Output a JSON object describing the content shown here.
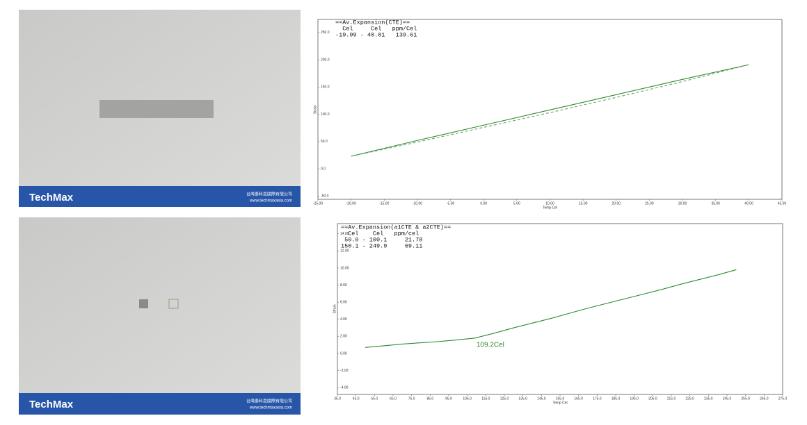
{
  "photos": [
    {
      "brand": "TechMax",
      "company": "台灣泰科思國際有限公司",
      "url": "www.techmaxasia.com"
    },
    {
      "brand": "TechMax",
      "company": "台灣泰科思國際有限公司",
      "url": "www.techmaxasia.com"
    }
  ],
  "chart_data": [
    {
      "type": "line",
      "annotation": [
        "==Av.Expansion(CTE)==",
        "  Cel     Cel   ppm/Cel",
        "-19.99 - 40.01   139.61"
      ],
      "x_label": "Temp Cel",
      "y_label": "Strain",
      "x": [
        -20,
        -10,
        0,
        10,
        20,
        30,
        40
      ],
      "series": [
        {
          "color": "#2e8b2e",
          "dashed": false,
          "values": [
            23,
            52,
            80,
            108,
            136,
            164,
            191
          ]
        },
        {
          "color": "#6f9f6f",
          "dashed": true,
          "values": [
            23,
            49,
            76,
            103,
            131,
            160,
            191
          ]
        }
      ],
      "xlim": [
        -25,
        45
      ],
      "xticks": [
        {
          "value": -25,
          "label": "-25.00"
        },
        {
          "value": -20,
          "label": "-20.00"
        },
        {
          "value": -15,
          "label": "-15.00"
        },
        {
          "value": -10,
          "label": "-10.00"
        },
        {
          "value": -5,
          "label": "-5.00"
        },
        {
          "value": 0,
          "label": "0.00"
        },
        {
          "value": 5,
          "label": "5.00"
        },
        {
          "value": 10,
          "label": "10.00"
        },
        {
          "value": 15,
          "label": "15.00"
        },
        {
          "value": 20,
          "label": "20.00"
        },
        {
          "value": 25,
          "label": "25.00"
        },
        {
          "value": 30,
          "label": "30.00"
        },
        {
          "value": 35,
          "label": "35.00"
        },
        {
          "value": 40,
          "label": "40.00"
        },
        {
          "value": 45,
          "label": "45.00"
        }
      ],
      "ylim": [
        -56,
        274
      ],
      "yticks": [
        {
          "value": -50,
          "label": "-50.0"
        },
        {
          "value": 0,
          "label": "0.0"
        },
        {
          "value": 50,
          "label": "50.0"
        },
        {
          "value": 100,
          "label": "100.0"
        },
        {
          "value": 150,
          "label": "150.0"
        },
        {
          "value": 200,
          "label": "200.0"
        },
        {
          "value": 250,
          "label": "250.0"
        }
      ]
    },
    {
      "type": "line",
      "annotation": [
        "==Av.Expansion(a1CTE & a2CTE)==",
        "  Cel    Cel   ppm/cel",
        " 50.0 - 100.1     21.78",
        "150.1 - 249.9     69.11"
      ],
      "point_label": {
        "text": "109.2Cel",
        "index": 6
      },
      "x_label": "Temp Cel",
      "y_label": "Strain",
      "x": [
        50,
        60,
        70,
        80,
        90,
        100,
        109.2,
        120,
        130,
        140,
        150,
        160,
        170,
        180,
        190,
        200,
        210,
        220,
        230,
        240,
        250
      ],
      "series": [
        {
          "color": "#2e8b2e",
          "dashed": false,
          "values": [
            0.7,
            0.9,
            1.1,
            1.25,
            1.4,
            1.6,
            1.8,
            2.4,
            3.0,
            3.55,
            4.1,
            4.7,
            5.3,
            5.85,
            6.4,
            6.95,
            7.5,
            8.1,
            8.65,
            9.2,
            9.8
          ]
        }
      ],
      "xlim": [
        35,
        275
      ],
      "xticks": [
        {
          "value": 35,
          "label": "35.0"
        },
        {
          "value": 45,
          "label": "45.0"
        },
        {
          "value": 55,
          "label": "55.0"
        },
        {
          "value": 65,
          "label": "65.0"
        },
        {
          "value": 75,
          "label": "75.0"
        },
        {
          "value": 85,
          "label": "85.0"
        },
        {
          "value": 95,
          "label": "95.0"
        },
        {
          "value": 105,
          "label": "105.0"
        },
        {
          "value": 115,
          "label": "115.0"
        },
        {
          "value": 125,
          "label": "125.0"
        },
        {
          "value": 135,
          "label": "135.0"
        },
        {
          "value": 145,
          "label": "145.0"
        },
        {
          "value": 155,
          "label": "155.0"
        },
        {
          "value": 165,
          "label": "165.0"
        },
        {
          "value": 175,
          "label": "175.0"
        },
        {
          "value": 185,
          "label": "185.0"
        },
        {
          "value": 195,
          "label": "195.0"
        },
        {
          "value": 205,
          "label": "205.0"
        },
        {
          "value": 215,
          "label": "215.0"
        },
        {
          "value": 225,
          "label": "225.0"
        },
        {
          "value": 235,
          "label": "235.0"
        },
        {
          "value": 245,
          "label": "245.0"
        },
        {
          "value": 255,
          "label": "255.0"
        },
        {
          "value": 265,
          "label": "265.0"
        },
        {
          "value": 275,
          "label": "275.0"
        }
      ],
      "ylim": [
        -4.8,
        15.2
      ],
      "yticks": [
        {
          "value": -4,
          "label": "-4.00"
        },
        {
          "value": -2,
          "label": "-2.00"
        },
        {
          "value": 0,
          "label": "0.00"
        },
        {
          "value": 2,
          "label": "2.00"
        },
        {
          "value": 4,
          "label": "4.00"
        },
        {
          "value": 6,
          "label": "6.00"
        },
        {
          "value": 8,
          "label": "8.00"
        },
        {
          "value": 10,
          "label": "10.00"
        },
        {
          "value": 12,
          "label": "12.00"
        },
        {
          "value": 14,
          "label": "14.00"
        }
      ]
    }
  ]
}
